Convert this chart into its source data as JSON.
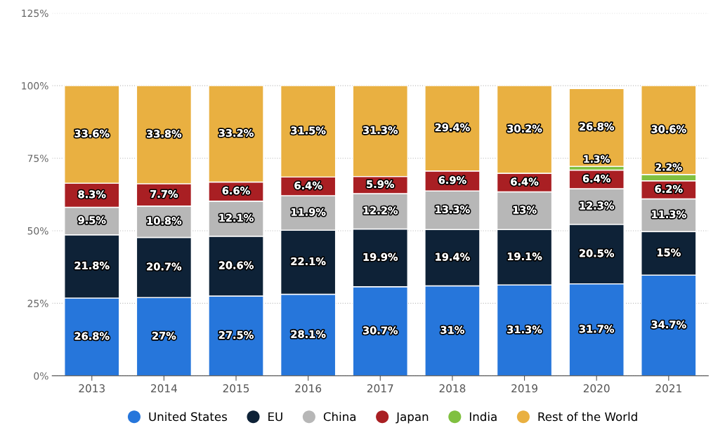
{
  "chart_data": {
    "type": "bar",
    "stacked": true,
    "categories": [
      "2013",
      "2014",
      "2015",
      "2016",
      "2017",
      "2018",
      "2019",
      "2020",
      "2021"
    ],
    "series": [
      {
        "name": "United States",
        "color": "#2676db",
        "values": [
          26.8,
          27,
          27.5,
          28.1,
          30.7,
          31,
          31.3,
          31.7,
          34.7
        ],
        "value_labels": [
          "26.8%",
          "27%",
          "27.5%",
          "28.1%",
          "30.7%",
          "31%",
          "31.3%",
          "31.7%",
          "34.7%"
        ]
      },
      {
        "name": "EU",
        "color": "#0e2237",
        "values": [
          21.8,
          20.7,
          20.6,
          22.1,
          19.9,
          19.4,
          19.1,
          20.5,
          15
        ],
        "value_labels": [
          "21.8%",
          "20.7%",
          "20.6%",
          "22.1%",
          "19.9%",
          "19.4%",
          "19.1%",
          "20.5%",
          "15%"
        ]
      },
      {
        "name": "China",
        "color": "#b7b7b7",
        "values": [
          9.5,
          10.8,
          12.1,
          11.9,
          12.2,
          13.3,
          13,
          12.3,
          11.3
        ],
        "value_labels": [
          "9.5%",
          "10.8%",
          "12.1%",
          "11.9%",
          "12.2%",
          "13.3%",
          "13%",
          "12.3%",
          "11.3%"
        ]
      },
      {
        "name": "Japan",
        "color": "#a91f23",
        "values": [
          8.3,
          7.7,
          6.6,
          6.4,
          5.9,
          6.9,
          6.4,
          6.4,
          6.2
        ],
        "value_labels": [
          "8.3%",
          "7.7%",
          "6.6%",
          "6.4%",
          "5.9%",
          "6.9%",
          "6.4%",
          "6.4%",
          "6.2%"
        ]
      },
      {
        "name": "India",
        "color": "#80c040",
        "values": [
          null,
          null,
          null,
          null,
          null,
          null,
          null,
          1.3,
          2.2
        ],
        "value_labels": [
          null,
          null,
          null,
          null,
          null,
          null,
          null,
          "1.3%",
          "2.2%"
        ]
      },
      {
        "name": "Rest of the World",
        "color": "#e9b041",
        "values": [
          33.6,
          33.8,
          33.2,
          31.5,
          31.3,
          29.4,
          30.2,
          26.8,
          30.6
        ],
        "value_labels": [
          "33.6%",
          "33.8%",
          "33.2%",
          "31.5%",
          "31.3%",
          "29.4%",
          "30.2%",
          "26.8%",
          "30.6%"
        ]
      }
    ],
    "ylim": [
      0,
      125
    ],
    "yticks": [
      {
        "value": 0,
        "label": "0%"
      },
      {
        "value": 25,
        "label": "25%"
      },
      {
        "value": 50,
        "label": "50%"
      },
      {
        "value": 75,
        "label": "75%"
      },
      {
        "value": 100,
        "label": "100%"
      },
      {
        "value": 125,
        "label": "125%"
      }
    ],
    "grid": "y",
    "legend": "bottom"
  }
}
